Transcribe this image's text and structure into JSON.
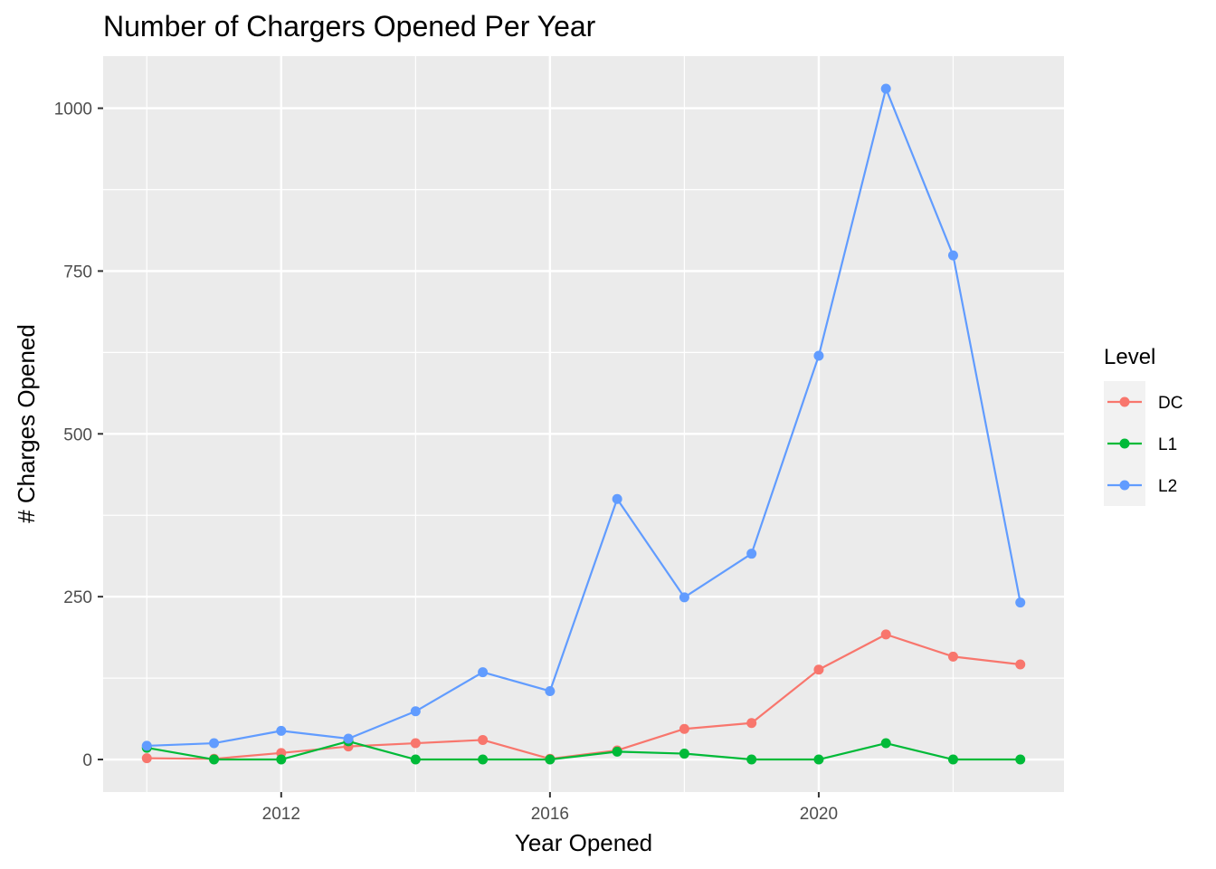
{
  "chart_data": {
    "type": "line",
    "title": "Number of Chargers Opened Per Year",
    "xlabel": "Year Opened",
    "ylabel": "# Charges Opened",
    "x": [
      2010,
      2011,
      2012,
      2013,
      2014,
      2015,
      2016,
      2017,
      2018,
      2019,
      2020,
      2021,
      2022,
      2023
    ],
    "xlim": [
      2009.35,
      2023.65
    ],
    "ylim": [
      -50,
      1080
    ],
    "x_ticks": [
      2012,
      2016,
      2020
    ],
    "y_ticks": [
      0,
      250,
      500,
      750,
      1000
    ],
    "grid": true,
    "legend_position": "right",
    "legend_title": "Level",
    "series": [
      {
        "name": "DC",
        "color": "#F8766D",
        "values": [
          2,
          1,
          10,
          20,
          25,
          30,
          1,
          14,
          47,
          56,
          138,
          192,
          158,
          146
        ]
      },
      {
        "name": "L1",
        "color": "#00BA38",
        "values": [
          18,
          0,
          0,
          28,
          0,
          0,
          0,
          12,
          9,
          0,
          0,
          25,
          0,
          0
        ]
      },
      {
        "name": "L2",
        "color": "#619CFF",
        "values": [
          21,
          25,
          44,
          32,
          74,
          134,
          105,
          400,
          249,
          316,
          620,
          1030,
          774,
          241
        ]
      }
    ]
  }
}
